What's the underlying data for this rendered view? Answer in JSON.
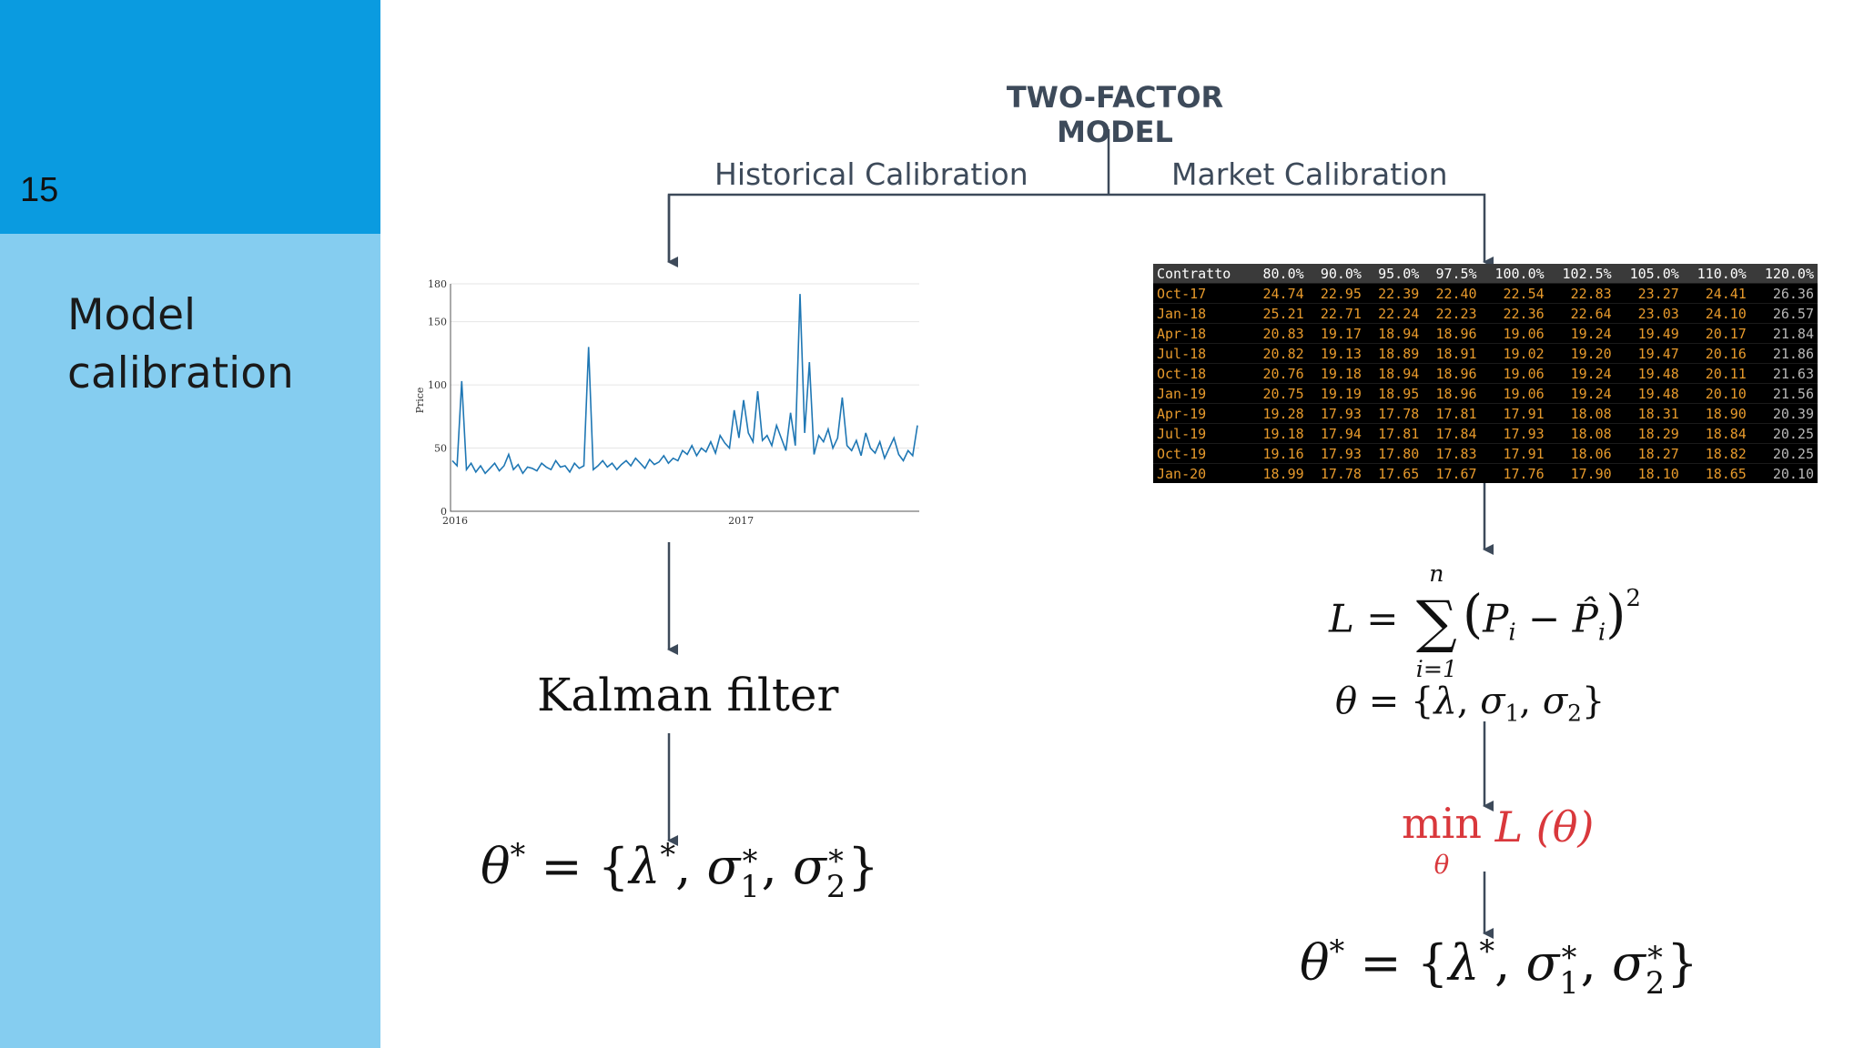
{
  "slide": {
    "number": "15",
    "title_line1": "Model",
    "title_line2": "calibration"
  },
  "diagram": {
    "title": "TWO-FACTOR MODEL",
    "left_branch": "Historical Calibration",
    "right_branch": "Market Calibration",
    "kalman": "Kalman filter"
  },
  "chart_data": {
    "type": "line",
    "title": "",
    "xlabel": "",
    "ylabel": "Price",
    "ylim": [
      0,
      180
    ],
    "yticks": [
      "0",
      "50",
      "100",
      "150",
      "180"
    ],
    "xticks": [
      "2016",
      "2017"
    ],
    "grid": true,
    "series": [
      {
        "values": [
          40,
          36,
          103,
          33,
          38,
          31,
          36,
          30,
          34,
          38,
          32,
          36,
          45,
          33,
          37,
          30,
          35,
          34,
          32,
          38,
          35,
          33,
          40,
          35,
          36,
          31,
          38,
          34,
          36,
          130,
          33,
          36,
          40,
          35,
          38,
          33,
          37,
          40,
          36,
          42,
          38,
          34,
          41,
          37,
          39,
          44,
          38,
          42,
          40,
          48,
          45,
          52,
          44,
          50,
          47,
          55,
          46,
          60,
          54,
          50,
          80,
          58,
          88,
          62,
          55,
          95,
          56,
          60,
          52,
          68,
          58,
          48,
          78,
          52,
          172,
          62,
          118,
          45,
          60,
          55,
          65,
          50,
          58,
          90,
          52,
          48,
          56,
          44,
          62,
          50,
          46,
          55,
          42,
          50,
          58,
          45,
          40,
          48,
          44,
          68
        ]
      }
    ]
  },
  "table": {
    "headers": [
      "Contratto",
      "80.0%",
      "90.0%",
      "95.0%",
      "97.5%",
      "100.0%",
      "102.5%",
      "105.0%",
      "110.0%",
      "120.0%"
    ],
    "rows": [
      [
        "Oct-17",
        "24.74",
        "22.95",
        "22.39",
        "22.40",
        "22.54",
        "22.83",
        "23.27",
        "24.41",
        "26.36"
      ],
      [
        "Jan-18",
        "25.21",
        "22.71",
        "22.24",
        "22.23",
        "22.36",
        "22.64",
        "23.03",
        "24.10",
        "26.57"
      ],
      [
        "Apr-18",
        "20.83",
        "19.17",
        "18.94",
        "18.96",
        "19.06",
        "19.24",
        "19.49",
        "20.17",
        "21.84"
      ],
      [
        "Jul-18",
        "20.82",
        "19.13",
        "18.89",
        "18.91",
        "19.02",
        "19.20",
        "19.47",
        "20.16",
        "21.86"
      ],
      [
        "Oct-18",
        "20.76",
        "19.18",
        "18.94",
        "18.96",
        "19.06",
        "19.24",
        "19.48",
        "20.11",
        "21.63"
      ],
      [
        "Jan-19",
        "20.75",
        "19.19",
        "18.95",
        "18.96",
        "19.06",
        "19.24",
        "19.48",
        "20.10",
        "21.56"
      ],
      [
        "Apr-19",
        "19.28",
        "17.93",
        "17.78",
        "17.81",
        "17.91",
        "18.08",
        "18.31",
        "18.90",
        "20.39"
      ],
      [
        "Jul-19",
        "19.18",
        "17.94",
        "17.81",
        "17.84",
        "17.93",
        "18.08",
        "18.29",
        "18.84",
        "20.25"
      ],
      [
        "Oct-19",
        "19.16",
        "17.93",
        "17.80",
        "17.83",
        "17.91",
        "18.06",
        "18.27",
        "18.82",
        "20.25"
      ],
      [
        "Jan-20",
        "18.99",
        "17.78",
        "17.65",
        "17.67",
        "17.76",
        "17.90",
        "18.10",
        "18.65",
        "20.10"
      ]
    ]
  },
  "math": {
    "theta": "θ",
    "star": "*",
    "eq": " = ",
    "open": "{",
    "close": "}",
    "lambda": "λ",
    "sigma": "σ",
    "comma": ", ",
    "one": "1",
    "two": "2",
    "L": "L",
    "sum_top": "n",
    "sum_symbol": "∑",
    "sum_bottom": "i=1",
    "lparen": "(",
    "rparen": ")",
    "P": "P",
    "Phat": "P̂",
    "i": "i",
    "minus": " − ",
    "min": "min",
    "L_theta": "L (θ)"
  },
  "colors": {
    "sidebar_top": "#0a9be0",
    "sidebar_bottom": "#85cdf0",
    "flow_lines": "#3d4a5a",
    "min_text": "#d9383c",
    "table_values": "#e79a2c",
    "series_line": "#1f77b4"
  }
}
